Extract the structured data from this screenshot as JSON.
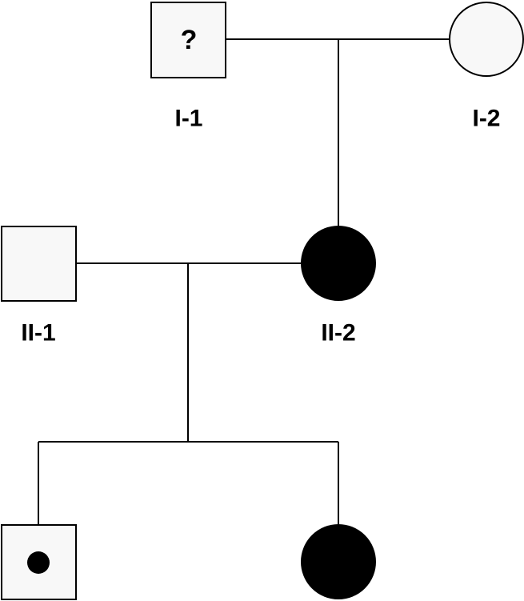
{
  "colors": {
    "line": "#000000",
    "unaffected_fill": "#f8f8f8",
    "affected_fill": "#000000",
    "carrier_dot": "#000000"
  },
  "individuals": {
    "I_1": {
      "label": "I-1",
      "sex": "male",
      "status": "unknown",
      "mark": "?"
    },
    "I_2": {
      "label": "I-2",
      "sex": "female",
      "status": "unaffected"
    },
    "II_1": {
      "label": "II-1",
      "sex": "male",
      "status": "unaffected"
    },
    "II_2": {
      "label": "II-2",
      "sex": "female",
      "status": "affected"
    },
    "III_1": {
      "sex": "male",
      "status": "carrier"
    },
    "III_2": {
      "sex": "female",
      "status": "affected"
    }
  }
}
